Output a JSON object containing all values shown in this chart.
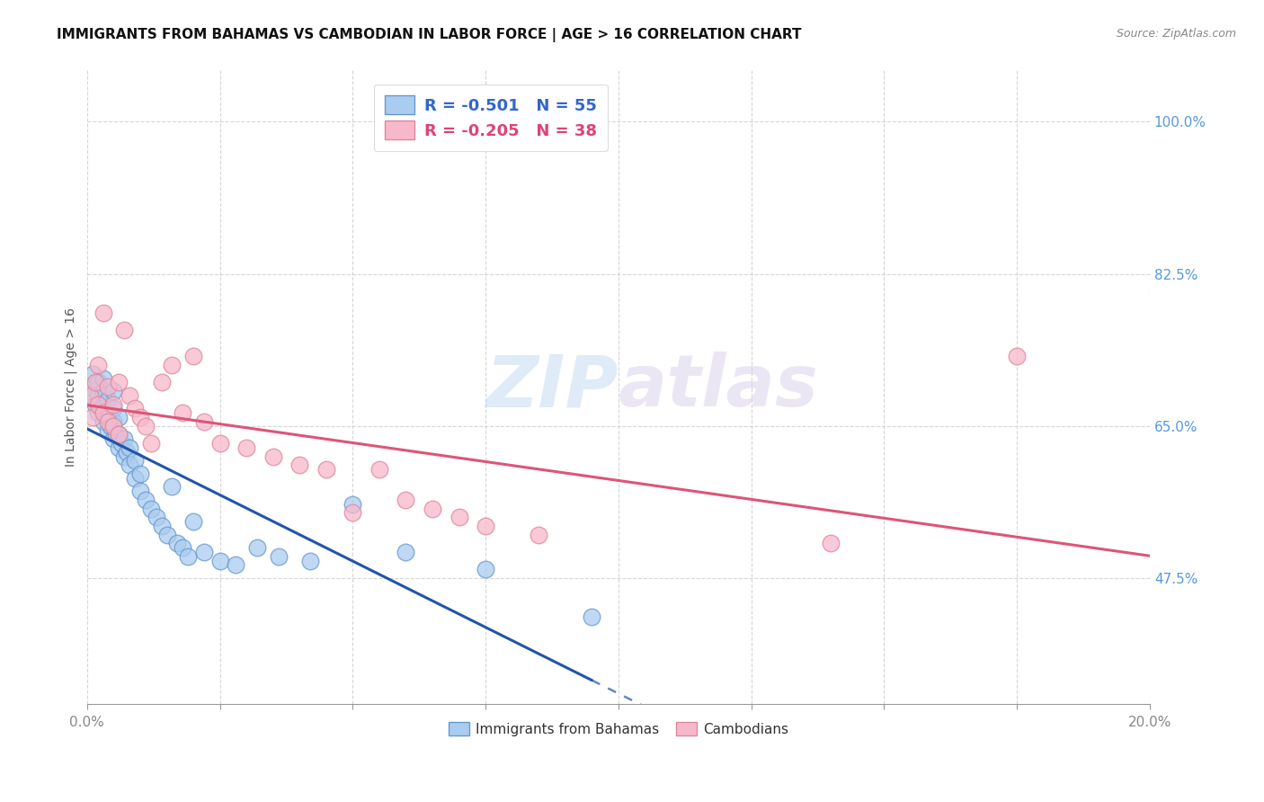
{
  "title": "IMMIGRANTS FROM BAHAMAS VS CAMBODIAN IN LABOR FORCE | AGE > 16 CORRELATION CHART",
  "source": "Source: ZipAtlas.com",
  "ylabel": "In Labor Force | Age > 16",
  "xlim": [
    0.0,
    0.2
  ],
  "ylim": [
    0.33,
    1.06
  ],
  "yticks": [
    0.475,
    0.65,
    0.825,
    1.0
  ],
  "ytick_labels": [
    "47.5%",
    "65.0%",
    "82.5%",
    "100.0%"
  ],
  "xticks": [
    0.0,
    0.025,
    0.05,
    0.075,
    0.1,
    0.125,
    0.15,
    0.175,
    0.2
  ],
  "xtick_labels": [
    "0.0%",
    "",
    "",
    "",
    "",
    "",
    "",
    "",
    "20.0%"
  ],
  "legend_label1": "R = -0.501   N = 55",
  "legend_label2": "R = -0.205   N = 38",
  "bottom_label1": "Immigrants from Bahamas",
  "bottom_label2": "Cambodians",
  "watermark": "ZIPatlas",
  "bahamas_color": "#aaccf0",
  "cambodian_color": "#f8b8cc",
  "bahamas_edge": "#6699cc",
  "cambodian_edge": "#dd8899",
  "trend_bahamas_color": "#2255aa",
  "trend_cambodian_color": "#dd5577",
  "bahamas_x": [
    0.0005,
    0.001,
    0.001,
    0.0015,
    0.002,
    0.002,
    0.002,
    0.0025,
    0.003,
    0.003,
    0.003,
    0.003,
    0.0035,
    0.004,
    0.004,
    0.004,
    0.0045,
    0.005,
    0.005,
    0.005,
    0.005,
    0.0055,
    0.006,
    0.006,
    0.006,
    0.0065,
    0.007,
    0.007,
    0.0075,
    0.008,
    0.008,
    0.009,
    0.009,
    0.01,
    0.01,
    0.011,
    0.012,
    0.013,
    0.014,
    0.015,
    0.016,
    0.017,
    0.018,
    0.019,
    0.02,
    0.022,
    0.025,
    0.028,
    0.032,
    0.036,
    0.042,
    0.05,
    0.06,
    0.075,
    0.095
  ],
  "bahamas_y": [
    0.695,
    0.685,
    0.71,
    0.675,
    0.665,
    0.685,
    0.7,
    0.67,
    0.655,
    0.675,
    0.69,
    0.705,
    0.66,
    0.645,
    0.66,
    0.68,
    0.65,
    0.635,
    0.655,
    0.67,
    0.69,
    0.64,
    0.625,
    0.64,
    0.66,
    0.63,
    0.615,
    0.635,
    0.62,
    0.605,
    0.625,
    0.59,
    0.61,
    0.575,
    0.595,
    0.565,
    0.555,
    0.545,
    0.535,
    0.525,
    0.58,
    0.515,
    0.51,
    0.5,
    0.54,
    0.505,
    0.495,
    0.49,
    0.51,
    0.5,
    0.495,
    0.56,
    0.505,
    0.485,
    0.43
  ],
  "cambodian_x": [
    0.0005,
    0.001,
    0.0015,
    0.002,
    0.002,
    0.003,
    0.003,
    0.004,
    0.004,
    0.005,
    0.005,
    0.006,
    0.006,
    0.007,
    0.008,
    0.009,
    0.01,
    0.011,
    0.012,
    0.014,
    0.016,
    0.018,
    0.02,
    0.022,
    0.025,
    0.03,
    0.035,
    0.04,
    0.045,
    0.05,
    0.055,
    0.06,
    0.065,
    0.07,
    0.075,
    0.085,
    0.14,
    0.175
  ],
  "cambodian_y": [
    0.685,
    0.66,
    0.7,
    0.675,
    0.72,
    0.665,
    0.78,
    0.655,
    0.695,
    0.65,
    0.675,
    0.64,
    0.7,
    0.76,
    0.685,
    0.67,
    0.66,
    0.65,
    0.63,
    0.7,
    0.72,
    0.665,
    0.73,
    0.655,
    0.63,
    0.625,
    0.615,
    0.605,
    0.6,
    0.55,
    0.6,
    0.565,
    0.555,
    0.545,
    0.535,
    0.525,
    0.515,
    0.73
  ],
  "background_color": "#ffffff",
  "grid_color": "#cccccc"
}
